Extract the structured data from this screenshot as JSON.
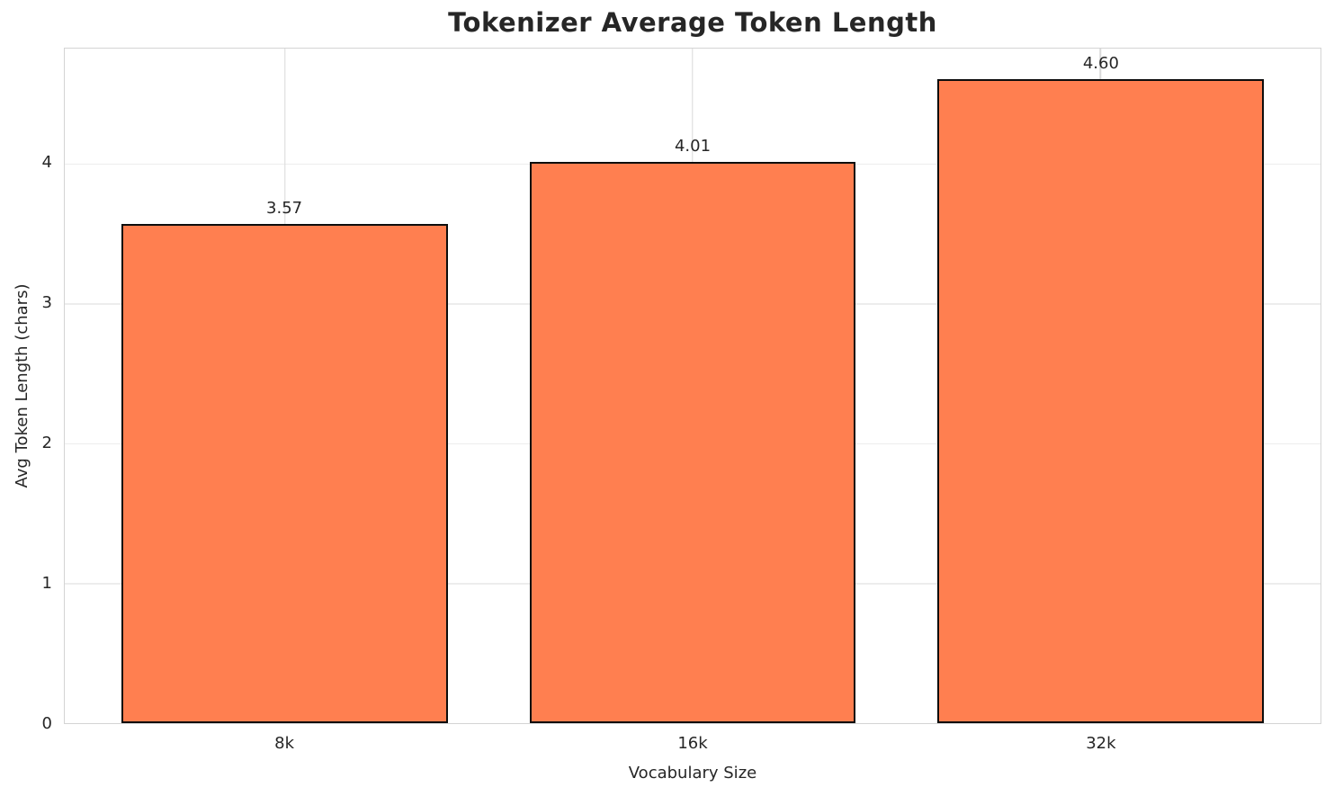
{
  "chart_data": {
    "type": "bar",
    "title": "Tokenizer Average Token Length",
    "xlabel": "Vocabulary Size",
    "ylabel": "Avg Token Length (chars)",
    "categories": [
      "8k",
      "16k",
      "32k"
    ],
    "values": [
      3.57,
      4.01,
      4.6
    ],
    "value_labels": [
      "3.57",
      "4.01",
      "4.60"
    ],
    "yticks": [
      0,
      1,
      2,
      3,
      4
    ],
    "ylim": [
      0,
      4.82
    ],
    "xlim": [
      -0.54,
      2.54
    ],
    "bar_width": 0.8,
    "grid": true,
    "legend": "none",
    "colors": {
      "bar_fill": "#FF7F50",
      "bar_edge": "#0d0d0d",
      "grid_horizontal": "#ededed",
      "grid_vertical": "#d9d9d9",
      "spine": "#d4d4d4",
      "text": "#262626",
      "background": "#ffffff"
    }
  }
}
